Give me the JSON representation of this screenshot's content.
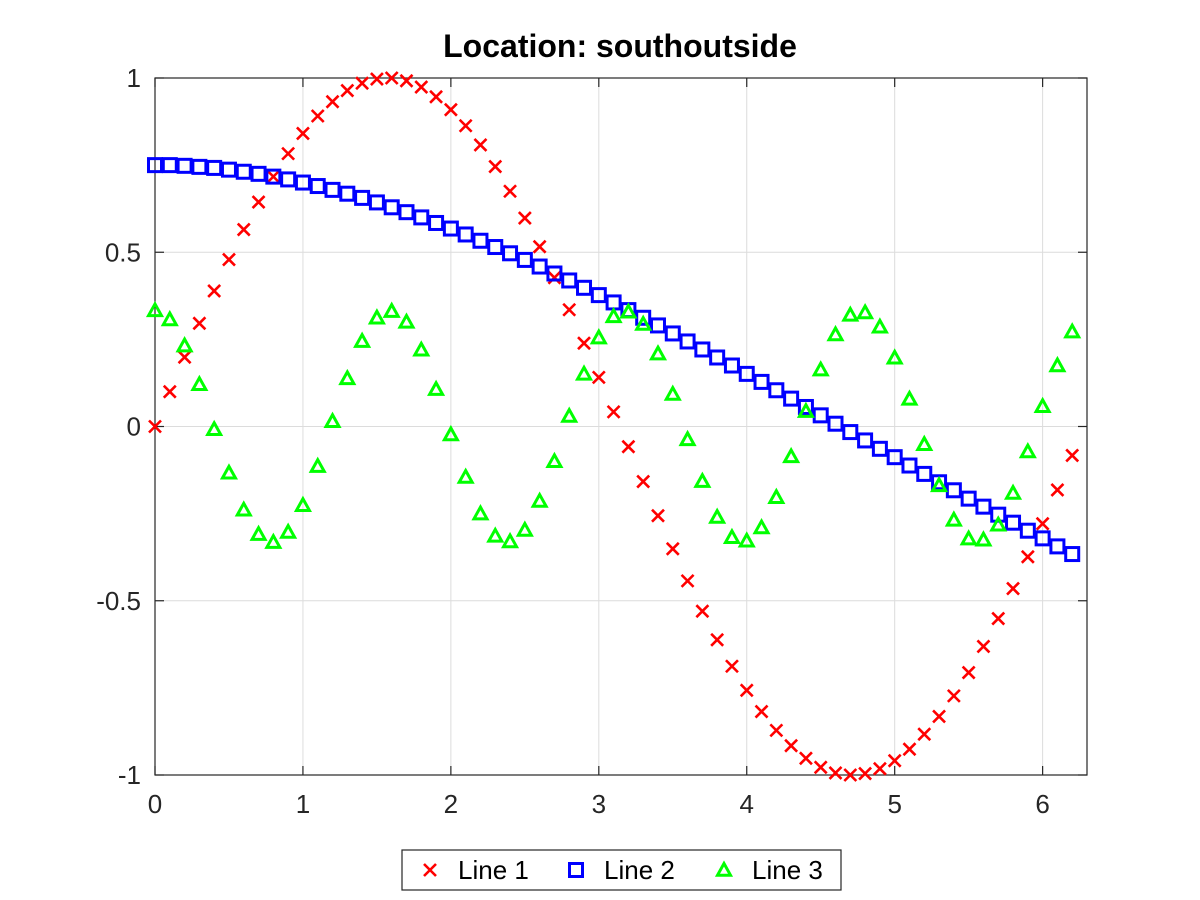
{
  "chart_data": {
    "type": "scatter",
    "title": "Location: southoutside",
    "xlabel": "",
    "ylabel": "",
    "xlim": [
      0,
      6.3
    ],
    "ylim": [
      -1,
      1
    ],
    "x_ticks": [
      0,
      1,
      2,
      3,
      4,
      5,
      6
    ],
    "x_tick_labels": [
      "0",
      "1",
      "2",
      "3",
      "4",
      "5",
      "6"
    ],
    "y_ticks": [
      -1,
      -0.5,
      0,
      0.5,
      1
    ],
    "y_tick_labels": [
      "-1",
      "-0.5",
      "0",
      "0.5",
      "1"
    ],
    "grid": true,
    "legend_location": "southoutside",
    "legend_orientation": "horizontal",
    "x": [
      0,
      0.1,
      0.2,
      0.3,
      0.4,
      0.5,
      0.6,
      0.7,
      0.8,
      0.9,
      1.0,
      1.1,
      1.2,
      1.3,
      1.4,
      1.5,
      1.6,
      1.7,
      1.8,
      1.9,
      2.0,
      2.1,
      2.2,
      2.3,
      2.4,
      2.5,
      2.6,
      2.7,
      2.8,
      2.9,
      3.0,
      3.1,
      3.2,
      3.3,
      3.4,
      3.5,
      3.6,
      3.7,
      3.8,
      3.9,
      4.0,
      4.1,
      4.2,
      4.3,
      4.4,
      4.5,
      4.6,
      4.7,
      4.8,
      4.9,
      5.0,
      5.1,
      5.2,
      5.3,
      5.4,
      5.5,
      5.6,
      5.7,
      5.8,
      5.9,
      6.0,
      6.1,
      6.2
    ],
    "series": [
      {
        "name": "Line 1",
        "marker": "x",
        "color": "#ff0000",
        "values": [
          0,
          0.1,
          0.199,
          0.296,
          0.389,
          0.479,
          0.565,
          0.644,
          0.717,
          0.783,
          0.841,
          0.891,
          0.932,
          0.964,
          0.985,
          0.997,
          1.0,
          0.992,
          0.974,
          0.946,
          0.909,
          0.863,
          0.808,
          0.746,
          0.675,
          0.598,
          0.516,
          0.427,
          0.335,
          0.239,
          0.141,
          0.042,
          -0.058,
          -0.158,
          -0.256,
          -0.351,
          -0.443,
          -0.53,
          -0.612,
          -0.688,
          -0.757,
          -0.818,
          -0.872,
          -0.916,
          -0.952,
          -0.978,
          -0.994,
          -1.0,
          -0.996,
          -0.982,
          -0.959,
          -0.926,
          -0.883,
          -0.832,
          -0.773,
          -0.706,
          -0.631,
          -0.551,
          -0.465,
          -0.374,
          -0.279,
          -0.182,
          -0.083
        ]
      },
      {
        "name": "Line 2",
        "marker": "square",
        "color": "#0000ff",
        "values": [
          0.75,
          0.75,
          0.748,
          0.745,
          0.742,
          0.737,
          0.731,
          0.725,
          0.717,
          0.709,
          0.7,
          0.69,
          0.679,
          0.668,
          0.656,
          0.643,
          0.629,
          0.615,
          0.6,
          0.584,
          0.568,
          0.551,
          0.533,
          0.515,
          0.497,
          0.478,
          0.459,
          0.439,
          0.419,
          0.398,
          0.377,
          0.356,
          0.334,
          0.312,
          0.29,
          0.267,
          0.244,
          0.221,
          0.198,
          0.175,
          0.151,
          0.128,
          0.104,
          0.08,
          0.056,
          0.032,
          0.008,
          -0.016,
          -0.04,
          -0.064,
          -0.088,
          -0.112,
          -0.136,
          -0.16,
          -0.183,
          -0.207,
          -0.23,
          -0.253,
          -0.276,
          -0.299,
          -0.321,
          -0.344,
          -0.366
        ]
      },
      {
        "name": "Line 3",
        "marker": "triangle",
        "color": "#00ff00",
        "values": [
          0.333,
          0.307,
          0.232,
          0.121,
          -0.008,
          -0.133,
          -0.239,
          -0.309,
          -0.332,
          -0.303,
          -0.226,
          -0.114,
          0.015,
          0.138,
          0.245,
          0.312,
          0.331,
          0.3,
          0.22,
          0.107,
          -0.023,
          -0.145,
          -0.25,
          -0.314,
          -0.33,
          -0.297,
          -0.214,
          -0.1,
          0.03,
          0.151,
          0.255,
          0.316,
          0.329,
          0.294,
          0.209,
          0.093,
          -0.037,
          -0.157,
          -0.26,
          -0.318,
          -0.328,
          -0.29,
          -0.203,
          -0.086,
          0.044,
          0.163,
          0.264,
          0.32,
          0.327,
          0.286,
          0.197,
          0.079,
          -0.051,
          -0.169,
          -0.268,
          -0.322,
          -0.325,
          -0.282,
          -0.191,
          -0.072,
          0.058,
          0.175,
          0.272
        ]
      }
    ]
  }
}
